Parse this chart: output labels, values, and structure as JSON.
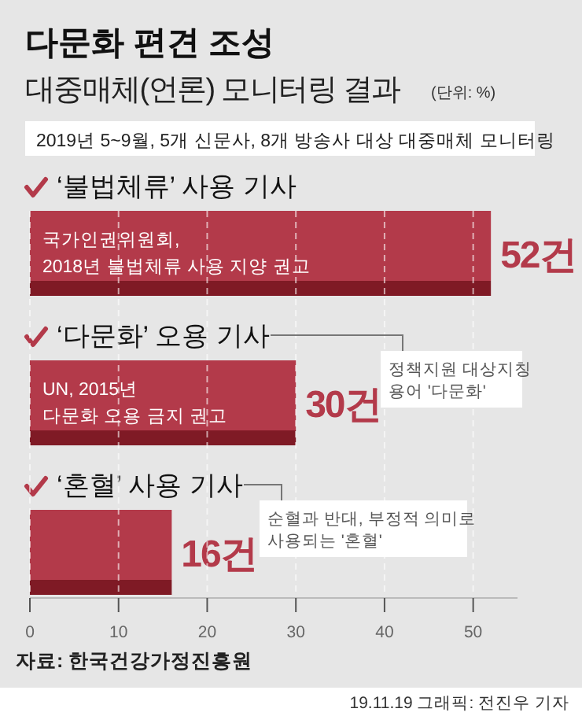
{
  "chart_data": {
    "type": "bar",
    "orientation": "horizontal",
    "title": "다문화 편견 조성",
    "subtitle": "대중매체(언론) 모니터링 결과",
    "categories": [
      "‘불법체류’ 사용 기사",
      "‘다문화’ 오용 기사",
      "‘혼혈’ 사용 기사"
    ],
    "values": [
      52,
      30,
      16
    ],
    "color": "#b33a4a",
    "value_labels": [
      "52건",
      "30건",
      "16건"
    ],
    "xlim": [
      0,
      55
    ],
    "xticks": [
      0,
      10,
      20,
      30,
      40,
      50
    ],
    "grid": "x",
    "annotations": [
      "(단위: %)",
      "2019년 5~9월, 5개 신문사, 8개 방송사 대상 대중매체 모니터링",
      "국가인권위원회,\n2018년 불법체류 사용 지양 권고",
      "UN, 2015년\n다문화 오용 금지 권고",
      "정책지원 대상지칭\n용어 '다문화'",
      "순혈과 반대, 부정적 의미로\n사용되는 '혼혈'",
      "자료: 한국건강가정진흥원",
      "19.11.19 그래픽: 전진우 기자"
    ]
  }
}
